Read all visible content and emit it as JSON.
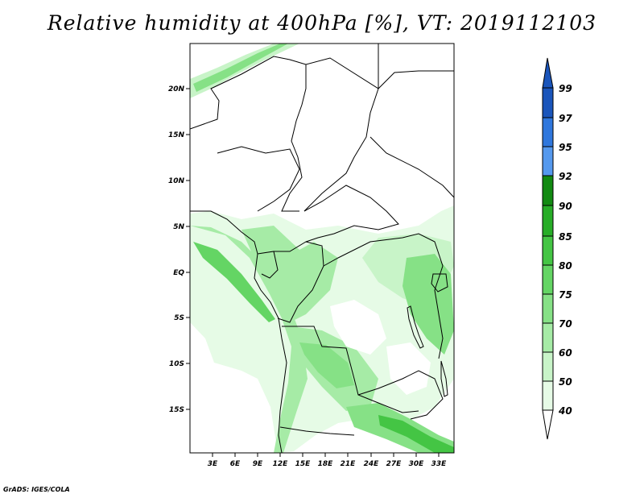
{
  "title": "Relative humidity at 400hPa [%], VT: 2019112103",
  "credit": "GrADS: IGES/COLA",
  "map": {
    "lat_labels": [
      "20N",
      "15N",
      "10N",
      "5N",
      "EQ",
      "5S",
      "10S",
      "15S"
    ],
    "lon_labels": [
      "3E",
      "6E",
      "9E",
      "12E",
      "15E",
      "18E",
      "21E",
      "24E",
      "27E",
      "30E",
      "33E"
    ]
  },
  "colorbar": {
    "levels": [
      "40",
      "50",
      "60",
      "70",
      "75",
      "80",
      "85",
      "90",
      "92",
      "95",
      "97",
      "99"
    ],
    "colors": [
      "#ffffff",
      "#e6fbe6",
      "#c8f4c8",
      "#a6eba6",
      "#86e186",
      "#64d564",
      "#44c544",
      "#27ad27",
      "#128a12",
      "#5599ee",
      "#2f77dd",
      "#1a55bb"
    ]
  }
}
